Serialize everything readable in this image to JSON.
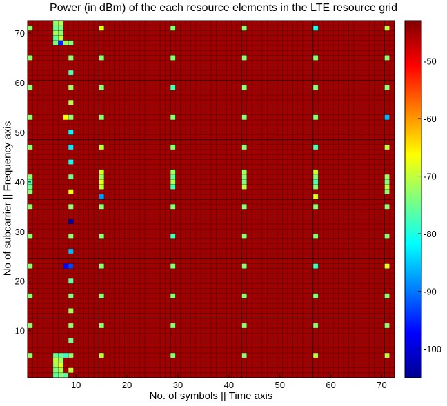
{
  "chart_data": {
    "type": "heatmap",
    "title": "Power (in dBm) of the each resource elements in the LTE resource grid",
    "xlabel": "No. of symbols || Time axis",
    "ylabel": "No of subcarrier || Frequency axis",
    "x_range": [
      1,
      72
    ],
    "y_range": [
      1,
      72
    ],
    "x_ticks": [
      10,
      20,
      30,
      40,
      50,
      60,
      70
    ],
    "y_ticks": [
      10,
      20,
      30,
      40,
      50,
      60,
      70
    ],
    "colorbar": {
      "colormap": "jet",
      "range": [
        -105,
        -43
      ],
      "ticks": [
        -50,
        -60,
        -70,
        -80,
        -90,
        -100
      ]
    },
    "background_value": -45,
    "grid": true,
    "resource_grid_lines_every_x": 14,
    "resource_grid_lines_every_y": 12,
    "cells": [
      [
        1,
        5,
        -73
      ],
      [
        1,
        11,
        -73
      ],
      [
        1,
        17,
        -73
      ],
      [
        1,
        23,
        -73
      ],
      [
        1,
        29,
        -73
      ],
      [
        1,
        35,
        -73
      ],
      [
        1,
        38,
        -73
      ],
      [
        1,
        39,
        -75
      ],
      [
        1,
        40,
        -77
      ],
      [
        1,
        41,
        -73
      ],
      [
        1,
        47,
        -73
      ],
      [
        1,
        53,
        -73
      ],
      [
        1,
        59,
        -73
      ],
      [
        1,
        65,
        -73
      ],
      [
        1,
        71,
        -73
      ],
      [
        6,
        1,
        -76
      ],
      [
        6,
        2,
        -74
      ],
      [
        6,
        3,
        -72
      ],
      [
        6,
        4,
        -70
      ],
      [
        6,
        5,
        -75
      ],
      [
        6,
        68,
        -74
      ],
      [
        6,
        69,
        -76
      ],
      [
        6,
        70,
        -72
      ],
      [
        6,
        71,
        -75
      ],
      [
        6,
        72,
        -73
      ],
      [
        7,
        1,
        -74
      ],
      [
        7,
        2,
        -71
      ],
      [
        7,
        3,
        -68
      ],
      [
        7,
        4,
        -72
      ],
      [
        7,
        5,
        -76
      ],
      [
        7,
        68,
        -95
      ],
      [
        7,
        69,
        -70
      ],
      [
        7,
        70,
        -73
      ],
      [
        7,
        71,
        -74
      ],
      [
        7,
        72,
        -71
      ],
      [
        8,
        1,
        -76
      ],
      [
        8,
        5,
        -78
      ],
      [
        8,
        23,
        -97
      ],
      [
        8,
        53,
        -66
      ],
      [
        8,
        68,
        -72
      ],
      [
        9,
        2,
        -70
      ],
      [
        9,
        5,
        -73
      ],
      [
        9,
        8,
        -75
      ],
      [
        9,
        11,
        -73
      ],
      [
        9,
        14,
        -72
      ],
      [
        9,
        17,
        -74
      ],
      [
        9,
        20,
        -76
      ],
      [
        9,
        23,
        -93
      ],
      [
        9,
        26,
        -86
      ],
      [
        9,
        29,
        -73
      ],
      [
        9,
        32,
        -103
      ],
      [
        9,
        35,
        -73
      ],
      [
        9,
        38,
        -67
      ],
      [
        9,
        41,
        -75
      ],
      [
        9,
        44,
        -81
      ],
      [
        9,
        47,
        -83
      ],
      [
        9,
        50,
        -82
      ],
      [
        9,
        53,
        -73
      ],
      [
        9,
        56,
        -71
      ],
      [
        9,
        59,
        -72
      ],
      [
        9,
        62,
        -77
      ],
      [
        9,
        65,
        -73
      ],
      [
        9,
        68,
        -74
      ],
      [
        15,
        5,
        -70
      ],
      [
        15,
        11,
        -73
      ],
      [
        15,
        17,
        -73
      ],
      [
        15,
        23,
        -73
      ],
      [
        15,
        29,
        -73
      ],
      [
        15,
        35,
        -73
      ],
      [
        15,
        37,
        -88
      ],
      [
        15,
        39,
        -70
      ],
      [
        15,
        40,
        -68
      ],
      [
        15,
        41,
        -72
      ],
      [
        15,
        42,
        -69
      ],
      [
        15,
        47,
        -70
      ],
      [
        15,
        53,
        -73
      ],
      [
        15,
        59,
        -73
      ],
      [
        15,
        65,
        -73
      ],
      [
        15,
        71,
        -68
      ],
      [
        29,
        5,
        -73
      ],
      [
        29,
        11,
        -73
      ],
      [
        29,
        17,
        -73
      ],
      [
        29,
        23,
        -73
      ],
      [
        29,
        29,
        -77
      ],
      [
        29,
        35,
        -73
      ],
      [
        29,
        39,
        -77
      ],
      [
        29,
        40,
        -71
      ],
      [
        29,
        41,
        -75
      ],
      [
        29,
        42,
        -72
      ],
      [
        29,
        47,
        -73
      ],
      [
        29,
        53,
        -73
      ],
      [
        29,
        59,
        -77
      ],
      [
        29,
        65,
        -73
      ],
      [
        29,
        71,
        -73
      ],
      [
        43,
        5,
        -73
      ],
      [
        43,
        11,
        -73
      ],
      [
        43,
        17,
        -73
      ],
      [
        43,
        23,
        -73
      ],
      [
        43,
        29,
        -73
      ],
      [
        43,
        35,
        -73
      ],
      [
        43,
        39,
        -70
      ],
      [
        43,
        40,
        -74
      ],
      [
        43,
        41,
        -73
      ],
      [
        43,
        42,
        -72
      ],
      [
        43,
        47,
        -73
      ],
      [
        43,
        53,
        -73
      ],
      [
        43,
        59,
        -73
      ],
      [
        43,
        65,
        -73
      ],
      [
        43,
        71,
        -73
      ],
      [
        57,
        5,
        -70
      ],
      [
        57,
        11,
        -73
      ],
      [
        57,
        17,
        -73
      ],
      [
        57,
        23,
        -78
      ],
      [
        57,
        29,
        -73
      ],
      [
        57,
        35,
        -73
      ],
      [
        57,
        37,
        -68
      ],
      [
        57,
        39,
        -73
      ],
      [
        57,
        40,
        -77
      ],
      [
        57,
        41,
        -73
      ],
      [
        57,
        42,
        -69
      ],
      [
        57,
        47,
        -77
      ],
      [
        57,
        53,
        -73
      ],
      [
        57,
        59,
        -73
      ],
      [
        57,
        65,
        -73
      ],
      [
        57,
        71,
        -80
      ],
      [
        71,
        5,
        -70
      ],
      [
        71,
        11,
        -73
      ],
      [
        71,
        17,
        -73
      ],
      [
        71,
        23,
        -68
      ],
      [
        71,
        29,
        -73
      ],
      [
        71,
        35,
        -73
      ],
      [
        71,
        38,
        -73
      ],
      [
        71,
        39,
        -70
      ],
      [
        71,
        40,
        -74
      ],
      [
        71,
        41,
        -72
      ],
      [
        71,
        47,
        -70
      ],
      [
        71,
        53,
        -86
      ],
      [
        71,
        59,
        -73
      ],
      [
        71,
        65,
        -73
      ],
      [
        71,
        71,
        -70
      ]
    ]
  }
}
